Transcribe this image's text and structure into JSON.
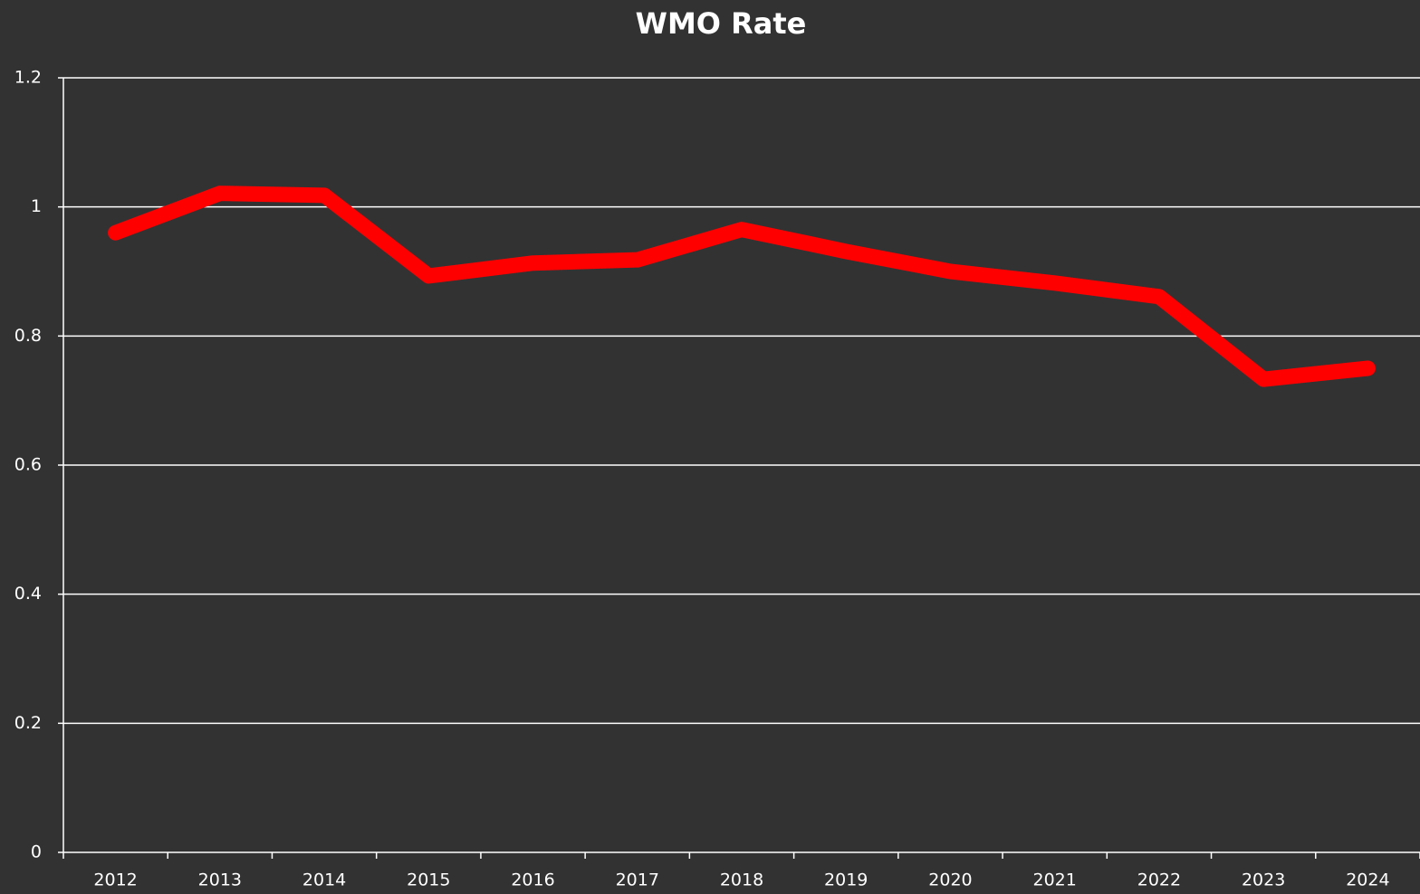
{
  "chart_data": {
    "type": "line",
    "title": "WMO Rate",
    "categories": [
      "2012",
      "2013",
      "2014",
      "2015",
      "2016",
      "2017",
      "2018",
      "2019",
      "2020",
      "2021",
      "2022",
      "2023",
      "2024"
    ],
    "series": [
      {
        "name": "WMO Rate",
        "color": "#ff0000",
        "values": [
          0.96,
          1.021,
          1.018,
          0.893,
          0.913,
          0.918,
          0.965,
          0.931,
          0.9,
          0.882,
          0.861,
          0.733,
          0.75
        ]
      }
    ],
    "ylim": [
      0,
      1.2
    ],
    "yticks": [
      0,
      0.2,
      0.4,
      0.6,
      0.8,
      1,
      1.2
    ],
    "grid": true
  }
}
